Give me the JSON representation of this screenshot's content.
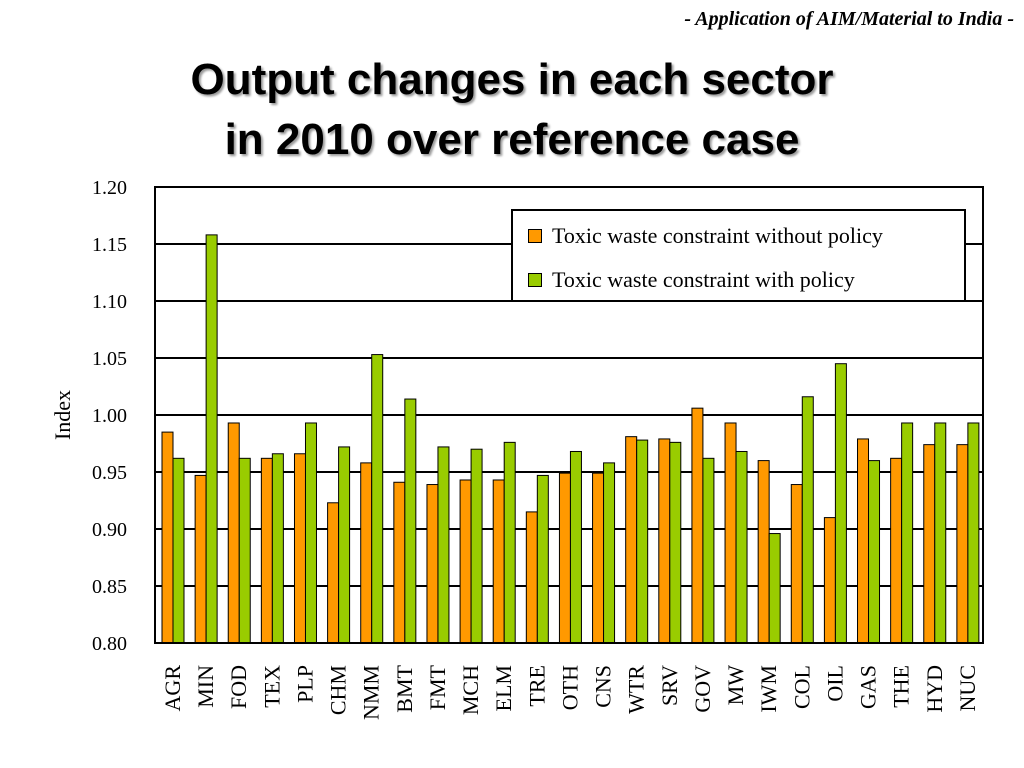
{
  "header_note": "- Application of AIM/Material to India -",
  "title_lines": [
    "Output changes in each sector",
    "in 2010 over reference case"
  ],
  "colors": {
    "without_policy": "#ff9900",
    "with_policy": "#99cc00"
  },
  "chart_data": {
    "type": "bar",
    "title": "Output changes in each sector in 2010 over reference case",
    "xlabel": "",
    "ylabel": "Index",
    "ylim": [
      0.8,
      1.2
    ],
    "yticks": [
      "1.20",
      "1.15",
      "1.10",
      "1.05",
      "1.00",
      "0.95",
      "0.90",
      "0.85",
      "0.80"
    ],
    "grid": true,
    "legend_position": "top-right",
    "categories": [
      "AGR",
      "MIN",
      "FOD",
      "TEX",
      "PLP",
      "CHM",
      "NMM",
      "BMT",
      "FMT",
      "MCH",
      "ELM",
      "TRE",
      "OTH",
      "CNS",
      "WTR",
      "SRV",
      "GOV",
      "MW",
      "IWM",
      "COL",
      "OIL",
      "GAS",
      "THE",
      "HYD",
      "NUC"
    ],
    "series": [
      {
        "name": "Toxic waste constraint without policy",
        "color": "#ff9900",
        "values": [
          0.985,
          0.947,
          0.993,
          0.962,
          0.966,
          0.923,
          0.958,
          0.941,
          0.939,
          0.943,
          0.943,
          0.915,
          0.949,
          0.949,
          0.981,
          0.979,
          1.006,
          0.993,
          0.96,
          0.939,
          0.91,
          0.979,
          0.962,
          0.974,
          0.974
        ]
      },
      {
        "name": "Toxic waste constraint with policy",
        "color": "#99cc00",
        "values": [
          0.962,
          1.158,
          0.962,
          0.966,
          0.993,
          0.972,
          1.053,
          1.014,
          0.972,
          0.97,
          0.976,
          0.947,
          0.968,
          0.958,
          0.978,
          0.976,
          0.962,
          0.968,
          0.896,
          1.016,
          1.045,
          0.96,
          0.993,
          0.993,
          0.993
        ]
      }
    ]
  }
}
